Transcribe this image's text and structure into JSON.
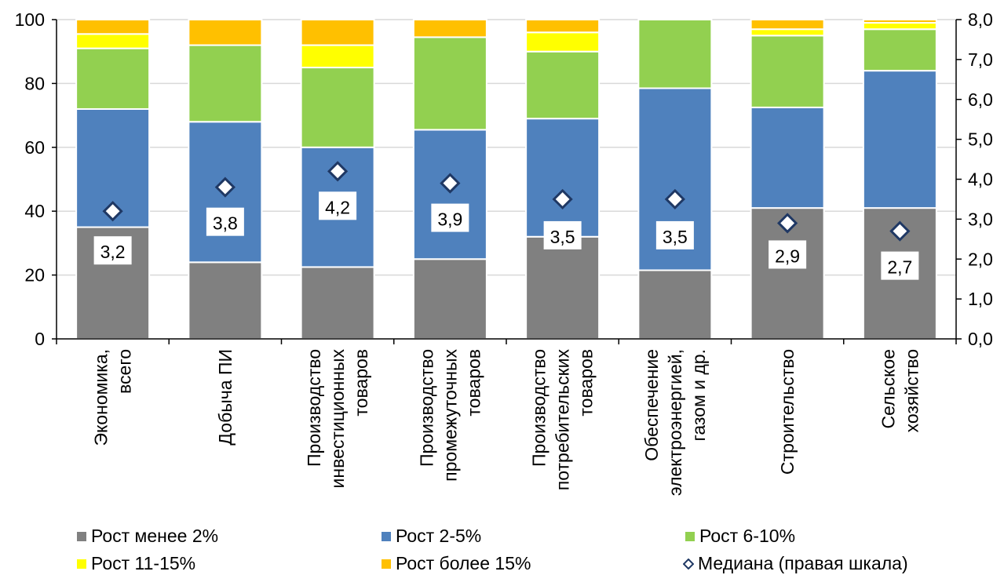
{
  "chart_data": {
    "type": "bar",
    "stacked": true,
    "categories": [
      [
        "Экономика,",
        "всего"
      ],
      [
        "Добыча ПИ"
      ],
      [
        "Производство",
        "инвестиционных",
        "товаров"
      ],
      [
        "Производство",
        "промежуточных",
        "товаров"
      ],
      [
        "Производство",
        "потребительских",
        "товаров"
      ],
      [
        "Обеспечение",
        "электроэнергией,",
        "газом и др."
      ],
      [
        "Строительство"
      ],
      [
        "Сельское",
        "хозяйство"
      ]
    ],
    "series": [
      {
        "name": "Рост менее 2%",
        "color": "#808080",
        "values": [
          35,
          24,
          22.5,
          25,
          32,
          21.5,
          41,
          41
        ]
      },
      {
        "name": "Рост 2-5%",
        "color": "#4f81bd",
        "values": [
          37,
          44,
          37.5,
          40.5,
          37,
          57,
          31.5,
          43
        ]
      },
      {
        "name": "Рост 6-10%",
        "color": "#92d050",
        "values": [
          19,
          24,
          25,
          29,
          21,
          21.5,
          22.5,
          13
        ]
      },
      {
        "name": "Рост 11-15%",
        "color": "#ffff00",
        "values": [
          4.5,
          0,
          7,
          0,
          6,
          0,
          2,
          2
        ]
      },
      {
        "name": "Рост более 15%",
        "color": "#ffc000",
        "values": [
          4.5,
          8,
          8,
          5.5,
          4,
          0,
          3,
          1
        ]
      }
    ],
    "median": {
      "name": "Медиана (правая шкала)",
      "values": [
        3.2,
        3.8,
        4.2,
        3.9,
        3.5,
        3.5,
        2.9,
        2.7
      ],
      "labels": [
        "3,2",
        "3,8",
        "4,2",
        "3,9",
        "3,5",
        "3,5",
        "2,9",
        "2,7"
      ]
    },
    "left_axis": {
      "min": 0,
      "max": 100,
      "ticks": [
        "0",
        "20",
        "40",
        "60",
        "80",
        "100"
      ]
    },
    "right_axis": {
      "min": 0,
      "max": 8,
      "ticks": [
        "0,0",
        "1,0",
        "2,0",
        "3,0",
        "4,0",
        "5,0",
        "6,0",
        "7,0",
        "8,0"
      ]
    },
    "grid": true,
    "legend": "bottom"
  }
}
